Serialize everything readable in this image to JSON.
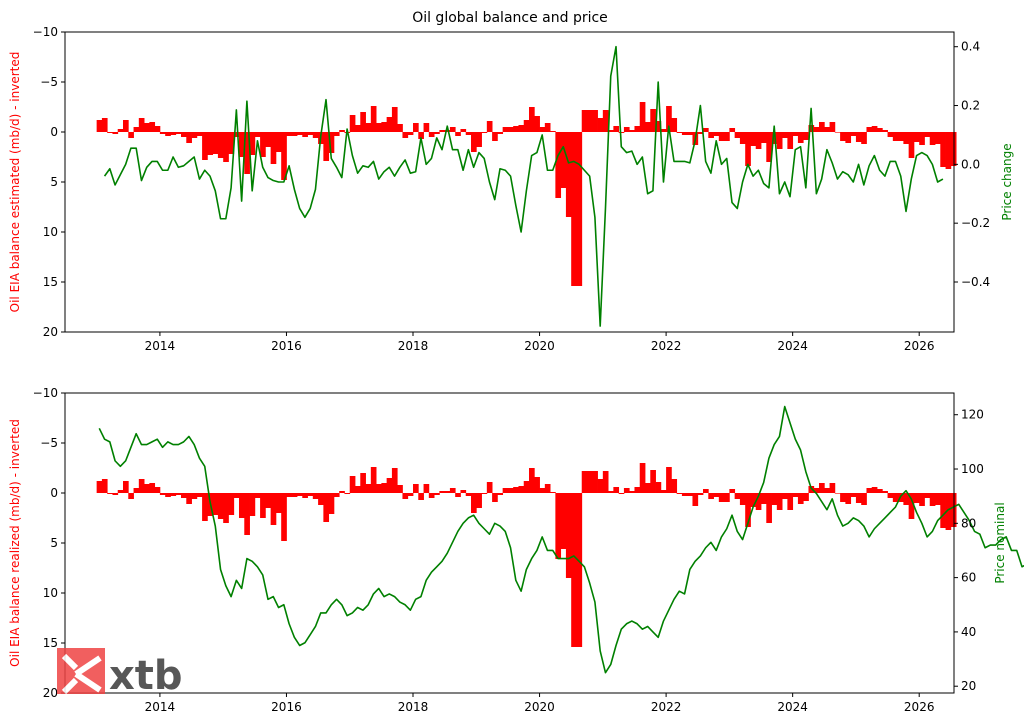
{
  "figure_title": "Oil global balance and price",
  "logo": {
    "name": "xtb",
    "brand_color": "#ef4444"
  },
  "colors": {
    "bars": "#ff0000",
    "line": "#008000",
    "axis": "#000000"
  },
  "chart_data": [
    {
      "type": "bar+line",
      "title": "Oil global balance and price",
      "xlabel": "",
      "x_ticks": [
        "2014",
        "2016",
        "2018",
        "2020",
        "2022",
        "2024",
        "2026"
      ],
      "xlim": [
        2012.5,
        2026.55
      ],
      "left_axis": {
        "label": "Oil EIA balance estimated (mb/d) - inverted",
        "ylim": [
          -10,
          20
        ],
        "inverted": true,
        "ticks": [
          "−10",
          "−5",
          "0",
          "5",
          "10",
          "15",
          "20"
        ]
      },
      "right_axis": {
        "label": "Price change",
        "ylim": [
          -0.57,
          0.45
        ],
        "ticks": [
          "0.4",
          "0.2",
          "0.0",
          "−0.2",
          "−0.4"
        ]
      },
      "series": [
        {
          "kind": "bar",
          "axis": "left",
          "start": "2013-01",
          "values": [
            -1.2,
            -1.4,
            0.1,
            0.2,
            -0.3,
            -1.2,
            0.6,
            -0.5,
            -1.4,
            -0.9,
            -1.0,
            -0.6,
            0.2,
            0.4,
            0.3,
            0.2,
            0.5,
            1.1,
            0.6,
            0.4,
            2.8,
            2.3,
            2.2,
            2.6,
            3.0,
            2.2,
            0.5,
            2.5,
            4.2,
            2.3,
            0.5,
            2.5,
            1.5,
            3.2,
            2.0,
            4.8,
            0.4,
            0.4,
            0.3,
            0.5,
            0.3,
            0.6,
            1.2,
            2.9,
            2.1,
            0.4,
            -0.2,
            0.1,
            -1.7,
            -0.7,
            -2.0,
            -0.9,
            -2.6,
            -0.9,
            -1.0,
            -1.5,
            -2.5,
            -0.8,
            0.6,
            0.3,
            -0.9,
            0.7,
            -0.9,
            0.5,
            0.2,
            -0.2,
            -0.2,
            -0.5,
            0.4,
            -0.3,
            0.3,
            2.0,
            1.5,
            0.1,
            -1.1,
            0.9,
            0.2,
            -0.5,
            -0.5,
            -0.6,
            -0.7,
            -1.2,
            -2.5,
            -1.6,
            -0.5,
            -0.9,
            -0.1,
            6.6,
            5.6,
            8.5,
            15.4,
            15.4,
            -2.2,
            -2.2,
            -2.2,
            -1.4,
            -2.2,
            -0.2,
            -0.6,
            0.1,
            -0.5,
            -0.2,
            -0.6,
            -3.0,
            -1.0,
            -2.3,
            -1.1,
            -0.3,
            -2.6,
            -1.4,
            0.1,
            0.3,
            0.3,
            1.3,
            0.2,
            -0.4,
            0.6,
            0.4,
            0.9,
            0.9,
            -0.4,
            0.6,
            1.2,
            3.4,
            1.4,
            1.7,
            1.1,
            3.0,
            1.2,
            1.7,
            0.6,
            1.7,
            0.4,
            1.1,
            0.8,
            -0.7,
            -0.5,
            -1.0,
            -0.5,
            -1.0,
            0.0,
            0.9,
            1.1,
            0.4,
            1.0,
            1.2,
            -0.5,
            -0.6,
            -0.4,
            -0.2,
            0.5,
            0.9,
            0.9,
            1.2,
            2.6,
            1.0,
            1.3,
            0.5,
            1.3,
            1.2,
            3.5,
            3.7,
            3.4
          ]
        },
        {
          "kind": "line",
          "axis": "right",
          "start": "2013-02",
          "values": [
            -0.04,
            -0.015,
            -0.07,
            -0.035,
            0.0,
            0.055,
            0.055,
            -0.055,
            -0.01,
            0.01,
            0.01,
            -0.02,
            -0.02,
            0.025,
            -0.01,
            -0.005,
            0.01,
            0.025,
            -0.05,
            -0.02,
            -0.04,
            -0.09,
            -0.185,
            -0.185,
            -0.08,
            0.185,
            -0.125,
            0.215,
            -0.09,
            0.08,
            -0.01,
            -0.045,
            -0.055,
            -0.06,
            -0.06,
            -0.005,
            -0.085,
            -0.15,
            -0.18,
            -0.15,
            -0.085,
            0.095,
            0.22,
            0.02,
            -0.01,
            -0.045,
            0.12,
            0.03,
            -0.03,
            -0.005,
            -0.01,
            0.01,
            -0.05,
            -0.025,
            -0.01,
            -0.04,
            -0.01,
            0.015,
            -0.03,
            -0.025,
            0.09,
            0.0,
            0.02,
            0.09,
            0.05,
            0.13,
            0.05,
            0.05,
            -0.02,
            0.05,
            -0.01,
            0.04,
            0.02,
            -0.06,
            -0.12,
            -0.015,
            -0.02,
            -0.04,
            -0.14,
            -0.23,
            -0.09,
            0.03,
            0.04,
            0.1,
            -0.02,
            -0.02,
            0.03,
            0.06,
            0.005,
            0.01,
            0.0,
            -0.02,
            -0.04,
            -0.18,
            -0.55,
            -0.15,
            0.3,
            0.4,
            0.06,
            0.04,
            0.045,
            0.0,
            0.025,
            -0.1,
            -0.09,
            0.28,
            -0.06,
            0.13,
            0.01,
            0.01,
            0.01,
            0.005,
            0.08,
            0.2,
            0.01,
            -0.03,
            0.08,
            0.0,
            0.02,
            -0.13,
            -0.15,
            -0.06,
            0.0,
            -0.04,
            -0.02,
            -0.065,
            -0.08,
            0.13,
            -0.1,
            -0.06,
            -0.11,
            0.05,
            0.06,
            -0.08,
            0.19,
            -0.1,
            -0.05,
            0.05,
            0.005,
            -0.05,
            -0.025,
            -0.035,
            -0.06,
            0.0,
            -0.07,
            -0.005,
            0.03,
            -0.02,
            -0.04,
            0.01,
            0.01,
            -0.04,
            -0.16,
            -0.05,
            0.03,
            0.04,
            0.03,
            0.0,
            -0.06,
            -0.05
          ]
        }
      ]
    },
    {
      "type": "bar+line",
      "title": "",
      "xlabel": "",
      "x_ticks": [
        "2014",
        "2016",
        "2018",
        "2020",
        "2022",
        "2024",
        "2026"
      ],
      "xlim": [
        2012.5,
        2026.55
      ],
      "left_axis": {
        "label": "Oil EIA balance realized (mb/d) - inverted",
        "ylim": [
          -10,
          20
        ],
        "inverted": true,
        "ticks": [
          "−10",
          "−5",
          "0",
          "5",
          "10",
          "15",
          "20"
        ]
      },
      "right_axis": {
        "label": "Price nominal",
        "ylim": [
          17.5,
          128
        ],
        "ticks": [
          "120",
          "100",
          "80",
          "60",
          "40",
          "20"
        ]
      },
      "series": [
        {
          "kind": "bar",
          "axis": "left",
          "start": "2013-01",
          "values": [
            -1.2,
            -1.4,
            0.1,
            0.2,
            -0.3,
            -1.2,
            0.6,
            -0.5,
            -1.4,
            -0.9,
            -1.0,
            -0.6,
            0.2,
            0.4,
            0.3,
            0.2,
            0.5,
            1.1,
            0.6,
            0.4,
            2.8,
            2.3,
            2.2,
            2.6,
            3.0,
            2.2,
            0.5,
            2.5,
            4.2,
            2.3,
            0.5,
            2.5,
            1.5,
            3.2,
            2.0,
            4.8,
            0.4,
            0.4,
            0.3,
            0.5,
            0.3,
            0.6,
            1.2,
            2.9,
            2.1,
            0.4,
            -0.2,
            0.1,
            -1.7,
            -0.7,
            -2.0,
            -0.9,
            -2.6,
            -0.9,
            -1.0,
            -1.5,
            -2.5,
            -0.8,
            0.6,
            0.3,
            -0.9,
            0.7,
            -0.9,
            0.5,
            0.2,
            -0.2,
            -0.2,
            -0.5,
            0.4,
            -0.3,
            0.3,
            2.0,
            1.5,
            0.1,
            -1.1,
            0.9,
            0.2,
            -0.5,
            -0.5,
            -0.6,
            -0.7,
            -1.2,
            -2.5,
            -1.6,
            -0.5,
            -0.9,
            -0.1,
            6.6,
            5.6,
            8.5,
            15.4,
            15.4,
            -2.2,
            -2.2,
            -2.2,
            -1.4,
            -2.2,
            -0.2,
            -0.6,
            0.1,
            -0.5,
            -0.2,
            -0.6,
            -3.0,
            -1.0,
            -2.3,
            -1.1,
            -0.3,
            -2.6,
            -1.4,
            0.1,
            0.3,
            0.3,
            1.3,
            0.2,
            -0.4,
            0.6,
            0.4,
            0.9,
            0.9,
            -0.4,
            0.6,
            1.2,
            3.4,
            1.4,
            1.7,
            1.1,
            3.0,
            1.2,
            1.7,
            0.6,
            1.7,
            0.4,
            1.1,
            0.8,
            -0.7,
            -0.5,
            -1.0,
            -0.5,
            -1.0,
            0.0,
            0.9,
            1.1,
            0.4,
            1.0,
            1.2,
            -0.5,
            -0.6,
            -0.4,
            -0.2,
            0.5,
            0.9,
            0.9,
            1.2,
            2.6,
            1.0,
            1.3,
            0.5,
            1.3,
            1.2,
            3.5,
            3.7,
            3.4
          ]
        },
        {
          "kind": "line",
          "axis": "right",
          "start": "2013-01",
          "values": [
            115,
            111,
            110,
            103,
            101,
            103,
            108,
            113,
            109,
            109,
            110,
            111,
            108,
            110,
            109,
            109,
            110,
            112,
            109,
            104,
            101,
            88,
            79,
            63,
            57,
            53,
            59,
            56,
            67,
            66,
            64,
            61,
            52,
            53,
            49,
            50,
            43,
            38,
            35,
            36,
            39,
            42,
            47,
            47,
            50,
            52,
            50,
            46,
            47,
            49,
            48,
            50,
            54,
            56,
            53,
            54,
            53,
            51,
            50,
            48,
            52,
            53,
            59,
            62,
            64,
            66,
            69,
            73,
            77,
            80,
            82,
            83,
            80,
            78,
            76,
            80,
            79,
            77,
            71,
            59,
            55,
            63,
            67,
            70,
            75,
            70,
            70,
            67,
            67,
            67,
            68,
            66,
            64,
            58,
            51,
            33,
            25,
            28,
            35,
            41,
            43,
            44,
            43,
            41,
            42,
            40,
            38,
            44,
            48,
            52,
            55,
            54,
            63,
            66,
            68,
            71,
            73,
            70,
            75,
            78,
            83,
            77,
            74,
            80,
            86,
            90,
            95,
            104,
            109,
            112,
            123,
            117,
            111,
            107,
            99,
            93,
            91,
            88,
            85,
            89,
            83,
            79,
            80,
            82,
            81,
            79,
            75,
            78,
            80,
            82,
            84,
            86,
            90,
            92,
            89,
            84,
            80,
            75,
            77,
            81,
            83,
            85,
            86,
            87,
            84,
            81,
            77,
            76,
            71,
            72,
            72,
            74,
            75,
            70,
            70,
            64,
            65,
            70,
            72,
            75,
            73,
            73,
            74,
            72,
            70,
            70,
            69,
            68,
            69,
            66,
            66,
            64
          ]
        }
      ]
    }
  ]
}
